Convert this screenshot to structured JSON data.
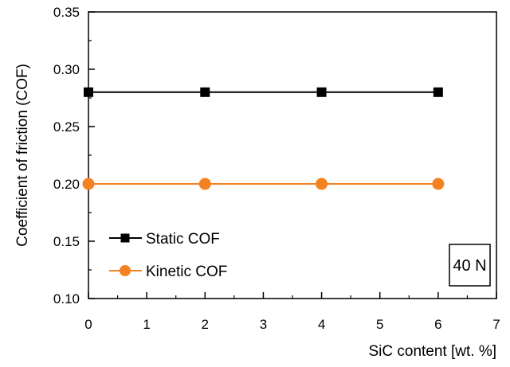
{
  "chart_data": {
    "type": "line",
    "title": "",
    "xlabel": "SiC content [wt. %]",
    "ylabel": "Coefficient of friction (COF)",
    "xlim": [
      0,
      7
    ],
    "ylim": [
      0.1,
      0.35
    ],
    "x_ticks": [
      0,
      1,
      2,
      3,
      4,
      5,
      6,
      7
    ],
    "y_ticks": [
      0.1,
      0.15,
      0.2,
      0.25,
      0.3,
      0.35
    ],
    "x_tick_labels": [
      "0",
      "1",
      "2",
      "3",
      "4",
      "5",
      "6",
      "7"
    ],
    "y_tick_labels": [
      "0.10",
      "0.15",
      "0.20",
      "0.25",
      "0.30",
      "0.35"
    ],
    "grid": false,
    "legend_position": "bottom-left",
    "series": [
      {
        "name": "Static COF",
        "x": [
          0,
          2,
          4,
          6
        ],
        "y": [
          0.28,
          0.28,
          0.28,
          0.28
        ],
        "color": "#000000",
        "marker": "square"
      },
      {
        "name": "Kinetic COF",
        "x": [
          0,
          2,
          4,
          6
        ],
        "y": [
          0.2,
          0.2,
          0.2,
          0.2
        ],
        "color": "#F58220",
        "marker": "circle"
      }
    ],
    "annotation": "40 N"
  }
}
